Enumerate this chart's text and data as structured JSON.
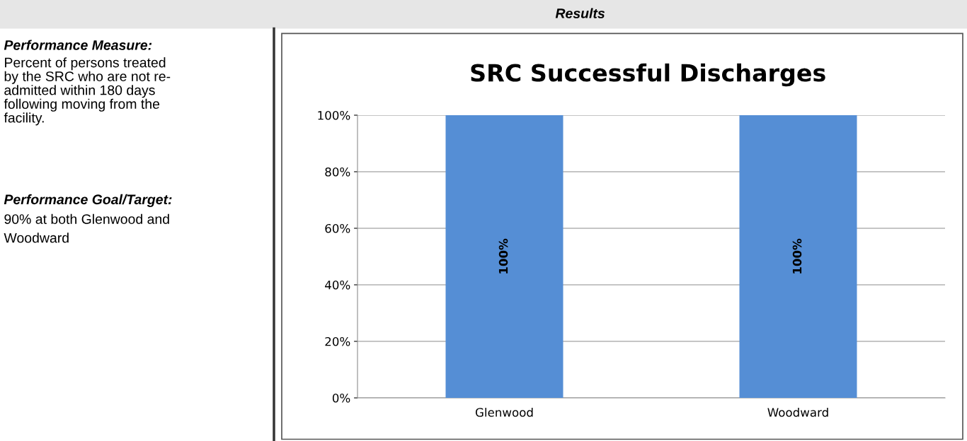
{
  "chart_data": {
    "type": "bar",
    "title": "SRC Successful Discharges",
    "categories": [
      "Glenwood",
      "Woodward"
    ],
    "values": [
      100,
      100
    ],
    "color": "#558ed5",
    "value_labels": [
      "100%",
      "100%"
    ],
    "ylim": [
      0,
      100
    ],
    "yticks": [
      {
        "value": 0,
        "label": "0%"
      },
      {
        "value": 20,
        "label": "20%"
      },
      {
        "value": 40,
        "label": "40%"
      },
      {
        "value": 60,
        "label": "60%"
      },
      {
        "value": 80,
        "label": "80%"
      },
      {
        "value": 100,
        "label": "100%"
      }
    ],
    "grid": "y",
    "annotations": [
      "Results",
      "Performance Measure:",
      "Percent of persons treated\nby the SRC who are not re-\nadmitted within 180 days\nfollowing moving from the\nfacility.",
      "Performance Goal/Target:",
      "90% at both Glenwood and\nWoodward"
    ]
  }
}
